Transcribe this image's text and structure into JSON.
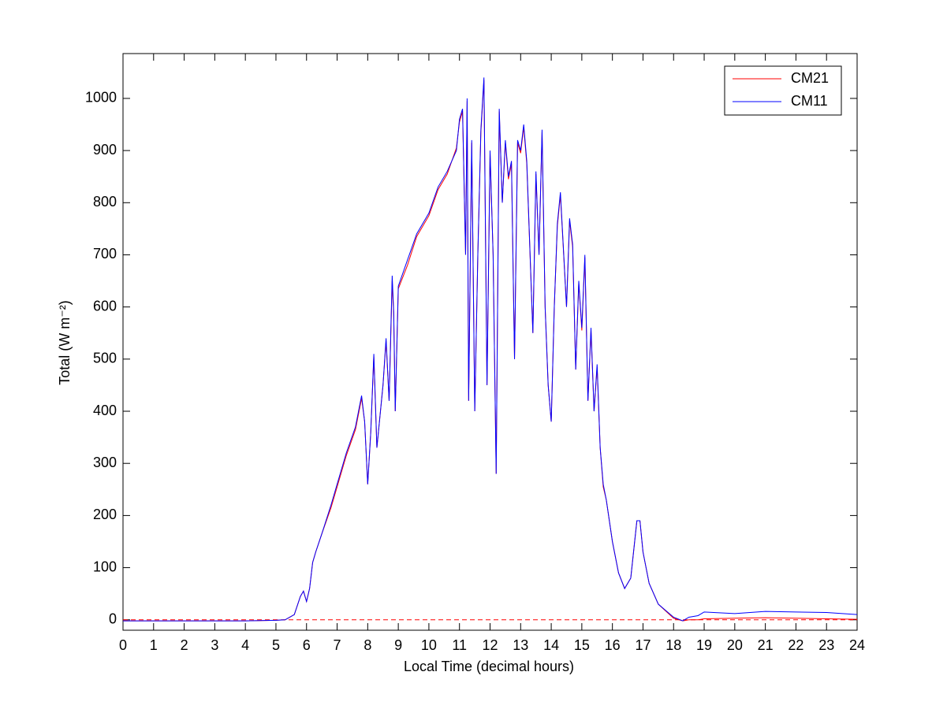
{
  "chart_data": {
    "type": "line",
    "xlabel": "Local Time (decimal hours)",
    "ylabel": "Total (W m⁻²)",
    "xlim": [
      0,
      24
    ],
    "ylim": [
      -20,
      1086
    ],
    "xticks": [
      0,
      1,
      2,
      3,
      4,
      5,
      6,
      7,
      8,
      9,
      10,
      11,
      12,
      13,
      14,
      15,
      16,
      17,
      18,
      19,
      20,
      21,
      22,
      23,
      24
    ],
    "yticks": [
      0,
      100,
      200,
      300,
      400,
      500,
      600,
      700,
      800,
      900,
      1000
    ],
    "grid": false,
    "legend": "upper right",
    "hline": {
      "value": 0,
      "color": "#ff0000",
      "style": "dashed"
    },
    "x": [
      0,
      1,
      2,
      3,
      4,
      5,
      5.3,
      5.6,
      5.8,
      5.9,
      6.0,
      6.1,
      6.2,
      6.3,
      6.5,
      6.8,
      7.0,
      7.3,
      7.6,
      7.8,
      7.9,
      8.0,
      8.1,
      8.2,
      8.3,
      8.5,
      8.6,
      8.7,
      8.8,
      8.85,
      8.9,
      9.0,
      9.3,
      9.6,
      10.0,
      10.3,
      10.6,
      10.9,
      11.0,
      11.1,
      11.2,
      11.25,
      11.3,
      11.4,
      11.5,
      11.6,
      11.7,
      11.8,
      11.9,
      12.0,
      12.1,
      12.2,
      12.3,
      12.4,
      12.5,
      12.6,
      12.7,
      12.8,
      12.9,
      13.0,
      13.1,
      13.2,
      13.4,
      13.5,
      13.6,
      13.7,
      13.8,
      13.9,
      14.0,
      14.1,
      14.2,
      14.3,
      14.5,
      14.6,
      14.7,
      14.8,
      14.9,
      15.0,
      15.1,
      15.2,
      15.3,
      15.4,
      15.5,
      15.6,
      15.7,
      15.8,
      16.0,
      16.2,
      16.4,
      16.6,
      16.8,
      16.9,
      17.0,
      17.2,
      17.5,
      18.0,
      18.3,
      18.5,
      18.8,
      19.0,
      20,
      21,
      22,
      23,
      24
    ],
    "series": [
      {
        "name": "CM21",
        "color": "#ff0000",
        "values": [
          -2,
          -2,
          -2,
          -2,
          -2,
          -1,
          0,
          10,
          45,
          55,
          35,
          60,
          110,
          130,
          165,
          215,
          255,
          315,
          365,
          425,
          380,
          260,
          360,
          505,
          330,
          450,
          535,
          420,
          650,
          585,
          400,
          635,
          680,
          735,
          775,
          825,
          855,
          905,
          955,
          975,
          700,
          995,
          420,
          915,
          400,
          700,
          935,
          1035,
          450,
          895,
          700,
          280,
          975,
          800,
          915,
          845,
          875,
          500,
          915,
          895,
          945,
          875,
          550,
          855,
          700,
          935,
          600,
          450,
          380,
          600,
          755,
          815,
          600,
          765,
          715,
          480,
          645,
          555,
          695,
          420,
          555,
          400,
          485,
          330,
          255,
          230,
          150,
          90,
          60,
          80,
          190,
          190,
          130,
          70,
          30,
          3,
          -2,
          0,
          0,
          2,
          3,
          4,
          3,
          2,
          1
        ]
      },
      {
        "name": "CM11",
        "color": "#0000ff",
        "values": [
          -2,
          -2,
          -2,
          -2,
          -2,
          -1,
          0,
          10,
          45,
          55,
          35,
          60,
          110,
          130,
          165,
          220,
          260,
          320,
          370,
          430,
          380,
          260,
          360,
          510,
          330,
          450,
          540,
          420,
          660,
          590,
          400,
          640,
          690,
          740,
          780,
          830,
          860,
          900,
          960,
          980,
          700,
          1000,
          420,
          920,
          400,
          700,
          940,
          1040,
          450,
          900,
          700,
          280,
          980,
          800,
          920,
          850,
          880,
          500,
          920,
          900,
          950,
          880,
          550,
          860,
          700,
          940,
          600,
          450,
          380,
          600,
          760,
          820,
          600,
          770,
          720,
          480,
          650,
          560,
          700,
          420,
          560,
          400,
          490,
          330,
          260,
          230,
          150,
          90,
          60,
          80,
          190,
          190,
          130,
          70,
          30,
          5,
          -2,
          5,
          8,
          15,
          12,
          16,
          15,
          14,
          10
        ]
      }
    ]
  }
}
